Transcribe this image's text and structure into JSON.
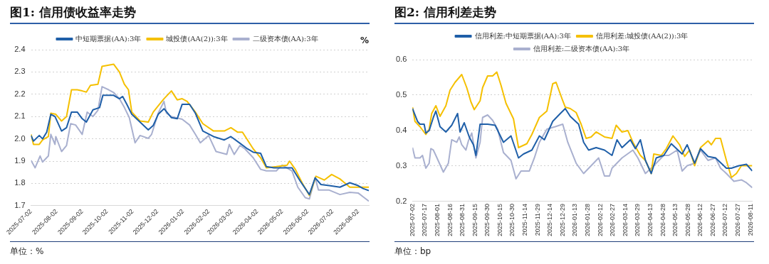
{
  "chart_data": [
    {
      "type": "line",
      "title": "图1: 信用债收益率走势",
      "ylabel": "%",
      "legend": "top",
      "grid": "y",
      "xlim": [
        "2025-07-02",
        "2026-08-15"
      ],
      "ylim": [
        1.7,
        2.4
      ],
      "yticks": [
        {
          "value": 1.7,
          "label": "1.7"
        },
        {
          "value": 1.8,
          "label": "1.8"
        },
        {
          "value": 1.9,
          "label": "1.9"
        },
        {
          "value": 2,
          "label": "2.0"
        },
        {
          "value": 2.1,
          "label": "2.1"
        },
        {
          "value": 2.2,
          "label": "2.2"
        },
        {
          "value": 2.3,
          "label": "2.3"
        },
        {
          "value": 2.4,
          "label": "2.4"
        }
      ],
      "xticks": [
        "2025-07-02",
        "2025-08-02",
        "2025-09-02",
        "2025-10-02",
        "2025-11-02",
        "2025-12-02",
        "2026-01-02",
        "2026-02-02",
        "2026-03-02",
        "2026-04-02",
        "2026-05-02",
        "2026-06-02",
        "2026-07-02",
        "2026-08-02"
      ],
      "series": [
        {
          "name": "中短期票据(AA):3年",
          "color": "#1f5fa8",
          "x": [
            "2025-07-02",
            "2025-07-05",
            "2025-07-12",
            "2025-07-16",
            "2025-07-21",
            "2025-07-26",
            "2025-07-31",
            "2025-08-08",
            "2025-08-14",
            "2025-08-20",
            "2025-08-27",
            "2025-09-02",
            "2025-09-07",
            "2025-09-15",
            "2025-09-23",
            "2025-09-27",
            "2025-10-10",
            "2025-10-17",
            "2025-10-21",
            "2025-10-26",
            "2025-11-01",
            "2025-11-11",
            "2025-11-21",
            "2025-11-27",
            "2025-12-03",
            "2025-12-10",
            "2025-12-19",
            "2025-12-26",
            "2026-01-01",
            "2026-01-10",
            "2026-01-17",
            "2026-01-26",
            "2026-02-08",
            "2026-02-21",
            "2026-03-01",
            "2026-03-12",
            "2026-03-21",
            "2026-03-28",
            "2026-04-06",
            "2026-04-13",
            "2026-04-22",
            "2026-05-05",
            "2026-05-14",
            "2026-05-24",
            "2026-06-04",
            "2026-06-11",
            "2026-06-18",
            "2026-06-28",
            "2026-07-11",
            "2026-07-23",
            "2026-08-02",
            "2026-08-08",
            "2026-08-15"
          ],
          "values": [
            2.015,
            1.99,
            2.015,
            2.0,
            2.03,
            2.11,
            2.1,
            2.035,
            2.05,
            2.12,
            2.12,
            2.09,
            2.075,
            2.13,
            2.14,
            2.195,
            2.195,
            2.18,
            2.19,
            2.155,
            2.11,
            2.075,
            2.04,
            2.06,
            2.11,
            2.135,
            2.095,
            2.09,
            2.155,
            2.155,
            2.115,
            2.035,
            2.01,
            1.995,
            2.01,
            1.98,
            1.955,
            1.94,
            1.935,
            1.875,
            1.87,
            1.87,
            1.87,
            1.81,
            1.75,
            1.825,
            1.795,
            1.79,
            1.783,
            1.803,
            1.79,
            1.777,
            1.768
          ]
        },
        {
          "name": "城投债(AA(2)):3年",
          "color": "#f5c000",
          "x": [
            "2025-07-02",
            "2025-07-05",
            "2025-07-12",
            "2025-07-16",
            "2025-07-23",
            "2025-07-26",
            "2025-08-01",
            "2025-08-08",
            "2025-08-14",
            "2025-08-20",
            "2025-08-27",
            "2025-09-02",
            "2025-09-07",
            "2025-09-12",
            "2025-09-21",
            "2025-09-26",
            "2025-10-10",
            "2025-10-17",
            "2025-10-23",
            "2025-10-28",
            "2025-11-01",
            "2025-11-11",
            "2025-11-21",
            "2025-11-27",
            "2025-12-03",
            "2025-12-10",
            "2025-12-19",
            "2025-12-26",
            "2026-01-01",
            "2026-01-07",
            "2026-01-17",
            "2026-01-26",
            "2026-02-08",
            "2026-02-21",
            "2026-03-01",
            "2026-03-09",
            "2026-03-15",
            "2026-03-28",
            "2026-04-06",
            "2026-04-13",
            "2026-04-25",
            "2026-05-08",
            "2026-05-11",
            "2026-05-18",
            "2026-05-27",
            "2026-06-04",
            "2026-06-12",
            "2026-06-22",
            "2026-07-01",
            "2026-07-11",
            "2026-07-23",
            "2026-08-02",
            "2026-08-15"
          ],
          "values": [
            2.02,
            1.975,
            1.975,
            1.995,
            2.01,
            2.115,
            2.11,
            2.08,
            2.1,
            2.22,
            2.22,
            2.215,
            2.21,
            2.24,
            2.245,
            2.325,
            2.335,
            2.3,
            2.245,
            2.22,
            2.12,
            2.08,
            2.075,
            2.12,
            2.148,
            2.18,
            2.215,
            2.175,
            2.18,
            2.168,
            2.12,
            2.068,
            2.035,
            2.035,
            2.05,
            2.03,
            2.03,
            1.955,
            1.915,
            1.87,
            1.875,
            1.882,
            1.9,
            1.863,
            1.797,
            1.746,
            1.832,
            1.815,
            1.84,
            1.82,
            1.783,
            1.783,
            1.783
          ]
        },
        {
          "name": "二级资本债(AA):3年",
          "color": "#a9b0cf",
          "x": [
            "2025-07-02",
            "2025-07-07",
            "2025-07-13",
            "2025-07-16",
            "2025-07-23",
            "2025-07-26",
            "2025-07-31",
            "2025-08-01",
            "2025-08-08",
            "2025-08-14",
            "2025-08-19",
            "2025-08-25",
            "2025-09-02",
            "2025-09-08",
            "2025-09-15",
            "2025-09-21",
            "2025-09-26",
            "2025-10-04",
            "2025-10-10",
            "2025-10-17",
            "2025-10-23",
            "2025-10-29",
            "2025-11-05",
            "2025-11-11",
            "2025-11-21",
            "2025-11-25",
            "2025-12-03",
            "2025-12-10",
            "2025-12-13",
            "2025-12-19",
            "2026-01-01",
            "2026-01-10",
            "2026-01-17",
            "2026-01-23",
            "2026-02-02",
            "2026-02-11",
            "2026-02-24",
            "2026-02-27",
            "2026-03-05",
            "2026-03-12",
            "2026-03-18",
            "2026-03-28",
            "2026-04-06",
            "2026-04-13",
            "2026-04-25",
            "2026-05-02",
            "2026-05-14",
            "2026-05-21",
            "2026-05-30",
            "2026-06-04",
            "2026-06-11",
            "2026-06-15",
            "2026-06-28",
            "2026-07-11",
            "2026-07-23",
            "2026-08-02",
            "2026-08-08",
            "2026-08-15"
          ],
          "values": [
            1.903,
            1.87,
            1.923,
            1.896,
            1.923,
            2.02,
            1.975,
            2.01,
            1.943,
            1.97,
            2.068,
            2.062,
            2.02,
            2.12,
            2.1,
            2.128,
            2.234,
            2.22,
            2.208,
            2.18,
            2.141,
            2.095,
            1.982,
            2.015,
            2.002,
            2.02,
            2.115,
            2.168,
            2.115,
            2.1,
            2.088,
            2.062,
            2.02,
            1.982,
            2.015,
            1.943,
            1.93,
            1.975,
            1.93,
            1.97,
            1.955,
            1.915,
            1.863,
            1.856,
            1.856,
            1.882,
            1.856,
            1.783,
            1.736,
            1.73,
            1.825,
            1.77,
            1.77,
            1.75,
            1.76,
            1.757,
            1.74,
            1.72
          ]
        }
      ],
      "annotations": [
        "单位：%"
      ]
    },
    {
      "type": "line",
      "title": "图2: 信用利差走势",
      "legend": "top",
      "grid": "y",
      "xlim": [
        "2025-07-02",
        "2026-08-13"
      ],
      "ylim": [
        0.2,
        0.6
      ],
      "yticks": [
        0.2,
        0.3,
        0.4,
        0.5,
        0.6
      ],
      "xticks": [
        "2025-07-02",
        "2025-07-17",
        "2025-08-01",
        "2025-08-16",
        "2025-08-31",
        "2025-09-15",
        "2025-09-30",
        "2025-10-15",
        "2025-10-30",
        "2025-11-14",
        "2025-11-29",
        "2025-12-14",
        "2025-12-29",
        "2026-01-13",
        "2026-01-28",
        "2026-02-12",
        "2026-02-27",
        "2026-03-14",
        "2026-03-29",
        "2026-04-13",
        "2026-04-28",
        "2026-05-13",
        "2026-05-28",
        "2026-06-12",
        "2026-06-27",
        "2026-07-12",
        "2026-07-27",
        "2026-08-11"
      ],
      "series": [
        {
          "name": "信用利差:中短期票据(AA):3年",
          "color": "#1f5fa8",
          "x": [
            "2025-07-02",
            "2025-07-08",
            "2025-07-11",
            "2025-07-16",
            "2025-07-18",
            "2025-07-22",
            "2025-07-27",
            "2025-07-30",
            "2025-08-04",
            "2025-08-11",
            "2025-08-18",
            "2025-08-25",
            "2025-08-28",
            "2025-09-02",
            "2025-09-08",
            "2025-09-13",
            "2025-09-16",
            "2025-09-21",
            "2025-09-30",
            "2025-10-09",
            "2025-10-19",
            "2025-10-28",
            "2025-11-06",
            "2025-11-12",
            "2025-11-22",
            "2025-12-01",
            "2025-12-07",
            "2025-12-17",
            "2025-12-26",
            "2026-01-01",
            "2026-01-07",
            "2026-01-17",
            "2026-01-23",
            "2026-01-29",
            "2026-02-07",
            "2026-02-17",
            "2026-02-26",
            "2026-03-04",
            "2026-03-10",
            "2026-03-20",
            "2026-03-26",
            "2026-04-01",
            "2026-04-07",
            "2026-04-14",
            "2026-04-20",
            "2026-04-29",
            "2026-05-08",
            "2026-05-21",
            "2026-05-27",
            "2026-06-05",
            "2026-06-12",
            "2026-06-21",
            "2026-06-30",
            "2026-07-13",
            "2026-07-19",
            "2026-07-28",
            "2026-08-06",
            "2026-08-13"
          ],
          "values": [
            0.462,
            0.426,
            0.418,
            0.418,
            0.393,
            0.4,
            0.437,
            0.455,
            0.411,
            0.396,
            0.415,
            0.448,
            0.396,
            0.422,
            0.382,
            0.36,
            0.33,
            0.418,
            0.418,
            0.415,
            0.367,
            0.385,
            0.323,
            0.334,
            0.345,
            0.385,
            0.374,
            0.426,
            0.448,
            0.462,
            0.44,
            0.418,
            0.367,
            0.345,
            0.352,
            0.345,
            0.33,
            0.374,
            0.352,
            0.374,
            0.349,
            0.374,
            0.316,
            0.279,
            0.323,
            0.33,
            0.363,
            0.334,
            0.36,
            0.308,
            0.349,
            0.327,
            0.323,
            0.294,
            0.294,
            0.301,
            0.305,
            0.286
          ]
        },
        {
          "name": "信用利差:城投债(AA(2)):3年",
          "color": "#f5c000",
          "x": [
            "2025-07-02",
            "2025-07-05",
            "2025-07-11",
            "2025-07-18",
            "2025-07-22",
            "2025-07-25",
            "2025-07-30",
            "2025-08-04",
            "2025-08-11",
            "2025-08-16",
            "2025-08-22",
            "2025-08-30",
            "2025-09-05",
            "2025-09-10",
            "2025-09-14",
            "2025-09-21",
            "2025-09-24",
            "2025-09-30",
            "2025-10-06",
            "2025-10-11",
            "2025-10-16",
            "2025-10-22",
            "2025-10-31",
            "2025-11-06",
            "2025-11-16",
            "2025-11-22",
            "2025-12-01",
            "2025-12-10",
            "2025-12-17",
            "2025-12-21",
            "2025-12-29",
            "2026-01-01",
            "2026-01-07",
            "2026-01-14",
            "2026-01-20",
            "2026-01-26",
            "2026-02-01",
            "2026-02-07",
            "2026-02-17",
            "2026-02-26",
            "2026-03-03",
            "2026-03-10",
            "2026-03-17",
            "2026-03-23",
            "2026-04-01",
            "2026-04-07",
            "2026-04-14",
            "2026-04-17",
            "2026-04-26",
            "2026-05-02",
            "2026-05-10",
            "2026-05-18",
            "2026-05-24",
            "2026-05-30",
            "2026-06-05",
            "2026-06-12",
            "2026-06-21",
            "2026-06-25",
            "2026-06-30",
            "2026-07-06",
            "2026-07-13",
            "2026-07-19",
            "2026-07-25",
            "2026-07-31",
            "2026-08-13"
          ],
          "values": [
            0.466,
            0.426,
            0.411,
            0.389,
            0.404,
            0.448,
            0.47,
            0.44,
            0.47,
            0.514,
            0.536,
            0.558,
            0.521,
            0.481,
            0.459,
            0.484,
            0.521,
            0.554,
            0.554,
            0.565,
            0.528,
            0.477,
            0.433,
            0.352,
            0.363,
            0.389,
            0.437,
            0.455,
            0.532,
            0.536,
            0.484,
            0.466,
            0.462,
            0.451,
            0.418,
            0.378,
            0.382,
            0.396,
            0.382,
            0.378,
            0.415,
            0.396,
            0.4,
            0.367,
            0.33,
            0.316,
            0.279,
            0.334,
            0.33,
            0.349,
            0.385,
            0.36,
            0.327,
            0.345,
            0.301,
            0.352,
            0.371,
            0.36,
            0.378,
            0.378,
            0.316,
            0.268,
            0.279,
            0.301,
            0.301
          ]
        },
        {
          "name": "信用利差:二级资本债(AA):3年",
          "color": "#a9b0cf",
          "x": [
            "2025-07-02",
            "2025-07-05",
            "2025-07-11",
            "2025-07-14",
            "2025-07-18",
            "2025-07-22",
            "2025-07-24",
            "2025-07-27",
            "2025-07-30",
            "2025-08-08",
            "2025-08-14",
            "2025-08-18",
            "2025-08-24",
            "2025-08-27",
            "2025-08-30",
            "2025-09-04",
            "2025-09-07",
            "2025-09-11",
            "2025-09-16",
            "2025-09-21",
            "2025-09-24",
            "2025-09-30",
            "2025-10-06",
            "2025-10-12",
            "2025-10-19",
            "2025-10-28",
            "2025-11-03",
            "2025-11-09",
            "2025-11-19",
            "2025-11-25",
            "2025-12-01",
            "2025-12-10",
            "2025-12-20",
            "2025-12-29",
            "2026-01-04",
            "2026-01-14",
            "2026-01-23",
            "2026-02-01",
            "2026-02-10",
            "2026-02-17",
            "2026-02-23",
            "2026-02-26",
            "2026-03-10",
            "2026-03-23",
            "2026-03-29",
            "2026-04-07",
            "2026-04-17",
            "2026-04-29",
            "2026-05-05",
            "2026-05-15",
            "2026-05-21",
            "2026-05-27",
            "2026-06-05",
            "2026-06-12",
            "2026-06-21",
            "2026-06-30",
            "2026-07-06",
            "2026-07-13",
            "2026-07-22",
            "2026-07-31",
            "2026-08-06",
            "2026-08-13"
          ],
          "values": [
            0.352,
            0.323,
            0.323,
            0.33,
            0.294,
            0.308,
            0.349,
            0.345,
            0.33,
            0.283,
            0.308,
            0.374,
            0.367,
            0.382,
            0.36,
            0.345,
            0.371,
            0.393,
            0.323,
            0.367,
            0.437,
            0.444,
            0.429,
            0.404,
            0.338,
            0.316,
            0.264,
            0.286,
            0.286,
            0.323,
            0.367,
            0.404,
            0.411,
            0.418,
            0.367,
            0.308,
            0.279,
            0.301,
            0.323,
            0.272,
            0.272,
            0.294,
            0.323,
            0.345,
            0.323,
            0.279,
            0.301,
            0.33,
            0.33,
            0.345,
            0.286,
            0.301,
            0.308,
            0.345,
            0.316,
            0.323,
            0.294,
            0.279,
            0.257,
            0.261,
            0.253,
            0.239
          ]
        }
      ],
      "annotations": [
        "单位：bp"
      ]
    }
  ]
}
